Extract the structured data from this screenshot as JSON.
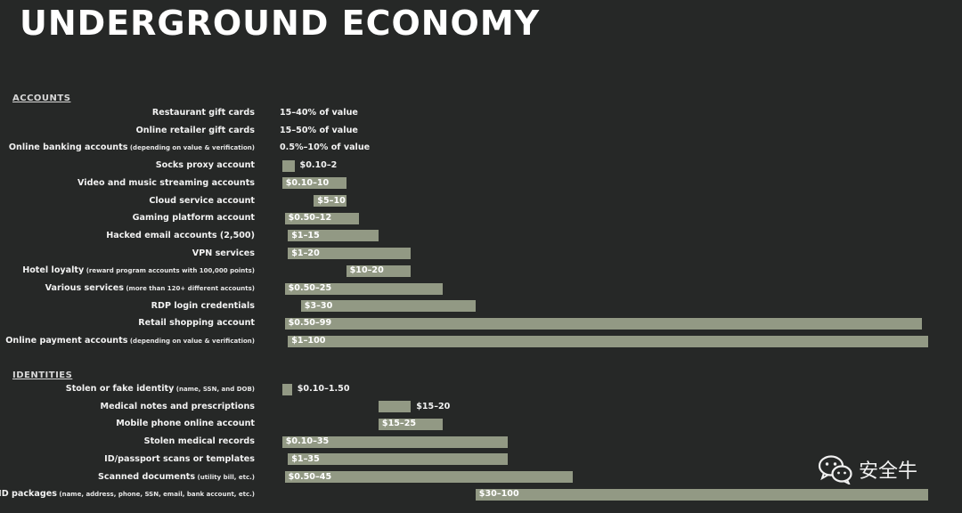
{
  "title": "UNDERGROUND ECONOMY",
  "watermark": "安全牛",
  "chart_data": {
    "type": "bar",
    "orientation": "horizontal",
    "value_unit": "USD",
    "sections": [
      {
        "name": "ACCOUNTS",
        "items": [
          {
            "label": "Restaurant gift cards",
            "note": "",
            "value_text": "15–40% of value",
            "bar": false
          },
          {
            "label": "Online retailer gift cards",
            "note": "",
            "value_text": "15–50% of value",
            "bar": false
          },
          {
            "label": "Online banking accounts",
            "note": "(depending on value & verification)",
            "value_text": "0.5%–10% of value",
            "bar": false
          },
          {
            "label": "Socks proxy account",
            "note": "",
            "value_text": "$0.10–2",
            "bar": true,
            "min": 0.1,
            "max": 2,
            "value_inside": false
          },
          {
            "label": "Video and music streaming accounts",
            "note": "",
            "value_text": "$0.10–10",
            "bar": true,
            "min": 0.1,
            "max": 10,
            "value_inside": true
          },
          {
            "label": "Cloud service account",
            "note": "",
            "value_text": "$5–10",
            "bar": true,
            "min": 5,
            "max": 10,
            "value_inside": true
          },
          {
            "label": "Gaming platform account",
            "note": "",
            "value_text": "$0.50–12",
            "bar": true,
            "min": 0.5,
            "max": 12,
            "value_inside": true
          },
          {
            "label": "Hacked email accounts (2,500)",
            "note": "",
            "value_text": "$1–15",
            "bar": true,
            "min": 1,
            "max": 15,
            "value_inside": true
          },
          {
            "label": "VPN services",
            "note": "",
            "value_text": "$1–20",
            "bar": true,
            "min": 1,
            "max": 20,
            "value_inside": true
          },
          {
            "label": "Hotel loyalty",
            "note": "(reward program accounts with 100,000 points)",
            "value_text": "$10–20",
            "bar": true,
            "min": 10,
            "max": 20,
            "value_inside": true
          },
          {
            "label": "Various services",
            "note": "(more than 120+ different accounts)",
            "value_text": "$0.50–25",
            "bar": true,
            "min": 0.5,
            "max": 25,
            "value_inside": true
          },
          {
            "label": "RDP login credentials",
            "note": "",
            "value_text": "$3–30",
            "bar": true,
            "min": 3,
            "max": 30,
            "value_inside": true
          },
          {
            "label": "Retail shopping account",
            "note": "",
            "value_text": "$0.50–99",
            "bar": true,
            "min": 0.5,
            "max": 99,
            "value_inside": true
          },
          {
            "label": "Online payment accounts",
            "note": "(depending on value & verification)",
            "value_text": "$1–100",
            "bar": true,
            "min": 1,
            "max": 100,
            "value_inside": true
          }
        ]
      },
      {
        "name": "IDENTITIES",
        "items": [
          {
            "label": "Stolen or fake identity",
            "note": "(name, SSN, and DOB)",
            "value_text": "$0.10–1.50",
            "bar": true,
            "min": 0.1,
            "max": 1.5,
            "value_inside": false
          },
          {
            "label": "Medical notes and prescriptions",
            "note": "",
            "value_text": "$15–20",
            "bar": true,
            "min": 15,
            "max": 20,
            "value_inside": false
          },
          {
            "label": "Mobile phone online account",
            "note": "",
            "value_text": "$15–25",
            "bar": true,
            "min": 15,
            "max": 25,
            "value_inside": true
          },
          {
            "label": "Stolen medical records",
            "note": "",
            "value_text": "$0.10–35",
            "bar": true,
            "min": 0.1,
            "max": 35,
            "value_inside": true
          },
          {
            "label": "ID/passport scans or templates",
            "note": "",
            "value_text": "$1–35",
            "bar": true,
            "min": 1,
            "max": 35,
            "value_inside": true
          },
          {
            "label": "Scanned documents",
            "note": "(utility bill, etc.)",
            "value_text": "$0.50–45",
            "bar": true,
            "min": 0.5,
            "max": 45,
            "value_inside": true
          },
          {
            "label": "Full ID packages",
            "note": "(name, address, phone, SSN, email, bank account, etc.)",
            "value_text": "$30–100",
            "bar": true,
            "min": 30,
            "max": 100,
            "value_inside": true
          }
        ]
      }
    ]
  }
}
